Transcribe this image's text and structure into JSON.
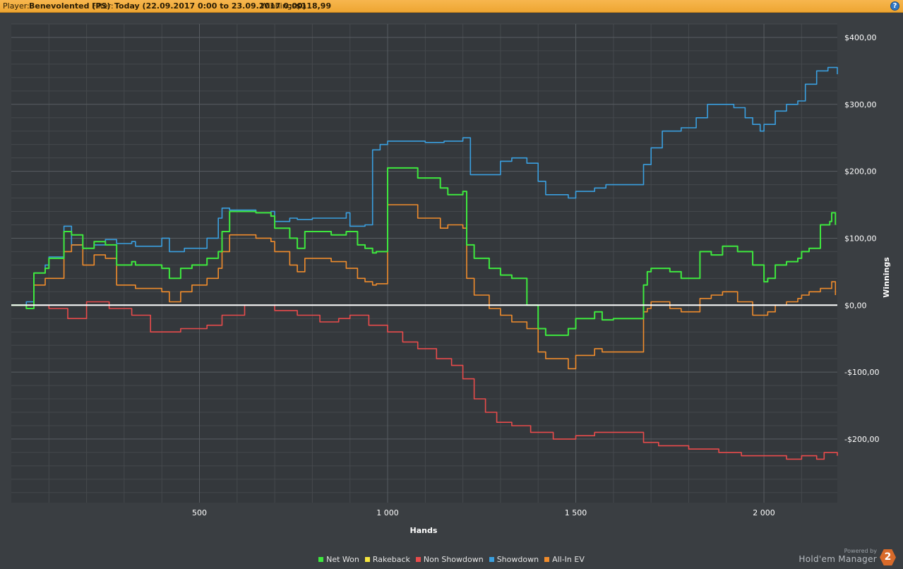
{
  "header": {
    "player_label": "Player:",
    "player_value": "Benevolented (PS)",
    "filter_label": "Filter:",
    "filter_value": "Today (22.09.2017 0:00 to 23.09.2017 0:00)",
    "winnings_label": "Winnings:",
    "winnings_value": "$118,99",
    "help": "?"
  },
  "brand": {
    "powered_by": "Powered by",
    "name": "Hold'em Manager",
    "logo": "2"
  },
  "colors": {
    "background": "#3a3e42",
    "grid": "#4d5256",
    "zero_line": "#ffffff",
    "header": "#f0a83a"
  },
  "chart_data": {
    "type": "line",
    "xlabel": "Hands",
    "ylabel": "Winnings",
    "xlim": [
      0,
      2195
    ],
    "ylim": [
      -295,
      420
    ],
    "x_ticks": [
      500,
      1000,
      1500,
      2000
    ],
    "x_tick_labels": [
      "500",
      "1 000",
      "1 500",
      "2 000"
    ],
    "y_ticks": [
      400,
      300,
      200,
      100,
      0,
      -100,
      -200
    ],
    "y_tick_labels": [
      "$400,00",
      "$300,00",
      "$200,00",
      "$100,00",
      "$0,00",
      "-$100,00",
      "-$200,00"
    ],
    "grid": true,
    "legend_position": "bottom",
    "series": [
      {
        "name": "Net Won",
        "color": "#3ee83e",
        "x": [
          0,
          30,
          40,
          60,
          90,
          100,
          140,
          160,
          190,
          220,
          250,
          280,
          320,
          330,
          400,
          420,
          450,
          480,
          520,
          550,
          560,
          580,
          650,
          690,
          700,
          740,
          760,
          780,
          850,
          890,
          920,
          940,
          960,
          970,
          1000,
          1080,
          1140,
          1160,
          1200,
          1210,
          1230,
          1270,
          1300,
          1330,
          1370,
          1400,
          1420,
          1480,
          1500,
          1550,
          1570,
          1600,
          1680,
          1690,
          1700,
          1750,
          1780,
          1830,
          1860,
          1890,
          1930,
          1970,
          2000,
          2010,
          2030,
          2060,
          2090,
          2100,
          2120,
          2150,
          2175,
          2180,
          2190
        ],
        "values": [
          0,
          0,
          -5,
          48,
          55,
          70,
          110,
          105,
          85,
          95,
          90,
          60,
          65,
          60,
          55,
          40,
          55,
          60,
          70,
          80,
          110,
          140,
          138,
          133,
          115,
          100,
          85,
          110,
          105,
          110,
          90,
          85,
          78,
          80,
          205,
          190,
          175,
          165,
          170,
          90,
          70,
          55,
          45,
          40,
          0,
          -35,
          -45,
          -35,
          -20,
          -10,
          -22,
          -20,
          30,
          50,
          55,
          50,
          40,
          80,
          75,
          88,
          80,
          60,
          35,
          40,
          60,
          65,
          70,
          80,
          85,
          120,
          125,
          138,
          120
        ]
      },
      {
        "name": "Rakeback",
        "color": "#f6e63e",
        "x": [],
        "values": []
      },
      {
        "name": "Non Showdown",
        "color": "#e84b4b",
        "x": [
          0,
          100,
          150,
          200,
          260,
          320,
          370,
          450,
          520,
          560,
          620,
          700,
          760,
          820,
          870,
          900,
          950,
          1000,
          1040,
          1080,
          1130,
          1170,
          1200,
          1230,
          1260,
          1290,
          1330,
          1380,
          1440,
          1500,
          1550,
          1600,
          1680,
          1720,
          1800,
          1880,
          1940,
          2000,
          2060,
          2100,
          2140,
          2160,
          2195
        ],
        "values": [
          0,
          -5,
          -20,
          5,
          -5,
          -15,
          -40,
          -35,
          -30,
          -15,
          0,
          -8,
          -15,
          -25,
          -20,
          -15,
          -30,
          -40,
          -55,
          -65,
          -80,
          -90,
          -110,
          -140,
          -160,
          -175,
          -180,
          -190,
          -200,
          -195,
          -190,
          -190,
          -205,
          -210,
          -215,
          -220,
          -225,
          -225,
          -230,
          -225,
          -230,
          -220,
          -225
        ]
      },
      {
        "name": "Showdown",
        "color": "#3a9fdf",
        "x": [
          0,
          30,
          40,
          60,
          90,
          100,
          140,
          160,
          190,
          220,
          250,
          280,
          320,
          330,
          400,
          420,
          460,
          520,
          550,
          560,
          580,
          650,
          690,
          700,
          740,
          760,
          800,
          850,
          890,
          900,
          940,
          960,
          980,
          1000,
          1050,
          1100,
          1150,
          1200,
          1220,
          1240,
          1260,
          1300,
          1330,
          1370,
          1400,
          1420,
          1480,
          1500,
          1550,
          1580,
          1620,
          1680,
          1700,
          1730,
          1780,
          1820,
          1850,
          1880,
          1920,
          1950,
          1970,
          1990,
          2000,
          2030,
          2060,
          2090,
          2110,
          2140,
          2170,
          2195
        ],
        "values": [
          0,
          0,
          5,
          48,
          60,
          72,
          118,
          90,
          85,
          90,
          98,
          92,
          95,
          88,
          100,
          80,
          85,
          100,
          130,
          145,
          142,
          138,
          140,
          125,
          130,
          128,
          130,
          130,
          138,
          118,
          120,
          232,
          240,
          245,
          245,
          243,
          245,
          250,
          195,
          195,
          195,
          215,
          220,
          212,
          185,
          165,
          160,
          170,
          175,
          180,
          180,
          210,
          235,
          260,
          265,
          280,
          300,
          300,
          295,
          280,
          270,
          260,
          270,
          290,
          300,
          305,
          330,
          350,
          355,
          345
        ]
      },
      {
        "name": "All-In EV",
        "color": "#f08c2c",
        "x": [
          0,
          30,
          40,
          60,
          90,
          100,
          140,
          160,
          190,
          220,
          250,
          280,
          320,
          330,
          400,
          420,
          450,
          480,
          520,
          550,
          560,
          580,
          650,
          690,
          700,
          740,
          760,
          780,
          850,
          890,
          920,
          940,
          960,
          970,
          1000,
          1080,
          1140,
          1160,
          1200,
          1210,
          1230,
          1270,
          1300,
          1330,
          1370,
          1400,
          1420,
          1480,
          1500,
          1550,
          1570,
          1600,
          1680,
          1690,
          1700,
          1750,
          1780,
          1830,
          1860,
          1890,
          1930,
          1970,
          2000,
          2010,
          2030,
          2060,
          2090,
          2100,
          2120,
          2150,
          2175,
          2180,
          2190
        ],
        "values": [
          0,
          0,
          -5,
          30,
          40,
          40,
          80,
          90,
          60,
          75,
          70,
          30,
          30,
          25,
          20,
          5,
          20,
          30,
          40,
          55,
          80,
          105,
          100,
          95,
          80,
          60,
          50,
          70,
          65,
          55,
          40,
          35,
          30,
          32,
          150,
          130,
          115,
          120,
          115,
          40,
          15,
          -5,
          -15,
          -25,
          -35,
          -70,
          -80,
          -95,
          -75,
          -65,
          -70,
          -70,
          -10,
          -5,
          5,
          -5,
          -10,
          10,
          15,
          20,
          5,
          -15,
          -15,
          -10,
          0,
          5,
          10,
          15,
          20,
          25,
          25,
          35,
          15
        ]
      }
    ]
  }
}
